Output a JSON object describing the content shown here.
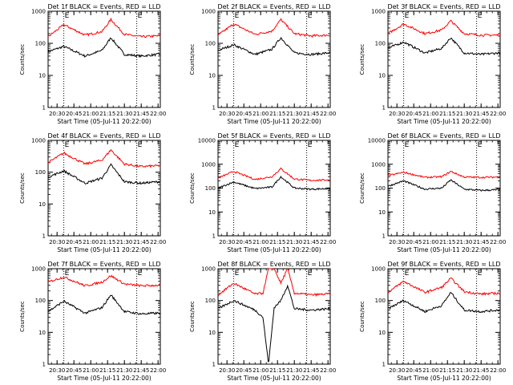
{
  "colors": {
    "events": "#000000",
    "lld": "#ff0000",
    "axes": "#000000",
    "background": "#ffffff"
  },
  "chart_data": [
    {
      "type": "line",
      "title": "Det 1f BLACK = Events, RED = LLD",
      "xlabel": "Start Time (05-Jul-11 20:22:00)",
      "ylabel": "Counts/sec",
      "xlim": [
        "20:22",
        "22:02"
      ],
      "ylim": [
        1,
        1000
      ],
      "yscale": "log",
      "xticks": [
        "20:30",
        "20:45",
        "21:00",
        "21:15",
        "21:30",
        "21:45",
        "22:00"
      ],
      "yticks": [
        "1",
        "10",
        "100",
        "1000"
      ],
      "markers": [
        {
          "time": "20:36",
          "label": "E"
        },
        {
          "time": "21:41",
          "label": "E"
        }
      ],
      "x": [
        "20:22",
        "20:36",
        "20:55",
        "21:10",
        "21:18",
        "21:30",
        "21:45",
        "22:00"
      ],
      "series": [
        {
          "name": "Events",
          "color": "#000000",
          "values": [
            55,
            80,
            40,
            60,
            150,
            45,
            40,
            45
          ]
        },
        {
          "name": "LLD",
          "color": "#ff0000",
          "values": [
            160,
            380,
            180,
            230,
            550,
            190,
            160,
            170
          ]
        }
      ]
    },
    {
      "type": "line",
      "title": "Det 2f BLACK = Events, RED = LLD",
      "xlabel": "Start Time (05-Jul-11 20:22:00)",
      "ylabel": "Counts/sec",
      "xlim": [
        "20:22",
        "22:02"
      ],
      "ylim": [
        1,
        1000
      ],
      "yscale": "log",
      "xticks": [
        "20:30",
        "20:45",
        "21:00",
        "21:15",
        "21:30",
        "21:45",
        "22:00"
      ],
      "yticks": [
        "1",
        "10",
        "100",
        "1000"
      ],
      "markers": [
        {
          "time": "20:36",
          "label": "E"
        },
        {
          "time": "21:41",
          "label": "E"
        }
      ],
      "x": [
        "20:22",
        "20:36",
        "20:55",
        "21:10",
        "21:18",
        "21:30",
        "21:45",
        "22:00"
      ],
      "series": [
        {
          "name": "Events",
          "color": "#000000",
          "values": [
            60,
            90,
            45,
            65,
            150,
            50,
            45,
            50
          ]
        },
        {
          "name": "LLD",
          "color": "#ff0000",
          "values": [
            180,
            400,
            190,
            240,
            550,
            200,
            170,
            180
          ]
        }
      ]
    },
    {
      "type": "line",
      "title": "Det 3f BLACK = Events, RED = LLD",
      "xlabel": "Start Time (05-Jul-11 20:22:00)",
      "ylabel": "Counts/sec",
      "xlim": [
        "20:22",
        "22:02"
      ],
      "ylim": [
        1,
        1000
      ],
      "yscale": "log",
      "xticks": [
        "20:30",
        "20:45",
        "21:00",
        "21:15",
        "21:30",
        "21:45",
        "22:00"
      ],
      "yticks": [
        "1",
        "10",
        "100",
        "1000"
      ],
      "markers": [
        {
          "time": "20:36",
          "label": "E"
        },
        {
          "time": "21:41",
          "label": "E"
        }
      ],
      "x": [
        "20:22",
        "20:36",
        "20:55",
        "21:10",
        "21:18",
        "21:30",
        "21:45",
        "22:00"
      ],
      "series": [
        {
          "name": "Events",
          "color": "#000000",
          "values": [
            70,
            110,
            50,
            70,
            150,
            50,
            45,
            50
          ]
        },
        {
          "name": "LLD",
          "color": "#ff0000",
          "values": [
            200,
            400,
            200,
            260,
            500,
            200,
            180,
            180
          ]
        }
      ]
    },
    {
      "type": "line",
      "title": "Det 4f BLACK = Events, RED = LLD",
      "xlabel": "Start Time (05-Jul-11 20:22:00)",
      "ylabel": "Counts/sec",
      "xlim": [
        "20:22",
        "22:02"
      ],
      "ylim": [
        1,
        1000
      ],
      "yscale": "log",
      "xticks": [
        "20:30",
        "20:45",
        "21:00",
        "21:15",
        "21:30",
        "21:45",
        "22:00"
      ],
      "yticks": [
        "1",
        "10",
        "100",
        "1000"
      ],
      "markers": [
        {
          "time": "20:36",
          "label": "E"
        },
        {
          "time": "21:41",
          "label": "E"
        }
      ],
      "x": [
        "20:22",
        "20:36",
        "20:55",
        "21:10",
        "21:18",
        "21:30",
        "21:45",
        "22:00"
      ],
      "series": [
        {
          "name": "Events",
          "color": "#000000",
          "values": [
            70,
            110,
            45,
            65,
            170,
            50,
            45,
            50
          ]
        },
        {
          "name": "LLD",
          "color": "#ff0000",
          "values": [
            200,
            400,
            180,
            240,
            500,
            180,
            150,
            160
          ]
        }
      ]
    },
    {
      "type": "line",
      "title": "Det 5f BLACK = Events, RED = LLD",
      "xlabel": "Start Time (05-Jul-11 20:22:00)",
      "ylabel": "Counts/sec",
      "xlim": [
        "20:22",
        "22:02"
      ],
      "ylim": [
        1,
        10000
      ],
      "yscale": "log",
      "xticks": [
        "20:30",
        "20:45",
        "21:00",
        "21:15",
        "21:30",
        "21:45",
        "22:00"
      ],
      "yticks": [
        "1",
        "10",
        "100",
        "1000",
        "10000"
      ],
      "markers": [
        {
          "time": "20:36",
          "label": "E"
        },
        {
          "time": "21:41",
          "label": "E"
        }
      ],
      "x": [
        "20:22",
        "20:36",
        "20:55",
        "21:10",
        "21:18",
        "21:30",
        "21:45",
        "22:00"
      ],
      "series": [
        {
          "name": "Events",
          "color": "#000000",
          "values": [
            100,
            180,
            95,
            110,
            300,
            100,
            90,
            95
          ]
        },
        {
          "name": "LLD",
          "color": "#ff0000",
          "values": [
            260,
            500,
            230,
            300,
            650,
            240,
            210,
            220
          ]
        }
      ]
    },
    {
      "type": "line",
      "title": "Det 6f BLACK = Events, RED = LLD",
      "xlabel": "Start Time (05-Jul-11 20:22:00)",
      "ylabel": "Counts/sec",
      "xlim": [
        "20:22",
        "22:02"
      ],
      "ylim": [
        1,
        10000
      ],
      "yscale": "log",
      "xticks": [
        "20:30",
        "20:45",
        "21:00",
        "21:15",
        "21:30",
        "21:45",
        "22:00"
      ],
      "yticks": [
        "1",
        "10",
        "100",
        "1000",
        "10000"
      ],
      "markers": [
        {
          "time": "20:36",
          "label": "E"
        },
        {
          "time": "21:41",
          "label": "E"
        }
      ],
      "x": [
        "20:22",
        "20:36",
        "20:55",
        "21:10",
        "21:18",
        "21:30",
        "21:45",
        "22:00"
      ],
      "series": [
        {
          "name": "Events",
          "color": "#000000",
          "values": [
            120,
            200,
            90,
            100,
            220,
            90,
            80,
            85
          ]
        },
        {
          "name": "LLD",
          "color": "#ff0000",
          "values": [
            330,
            460,
            280,
            300,
            500,
            290,
            280,
            290
          ]
        }
      ]
    },
    {
      "type": "line",
      "title": "Det 7f BLACK = Events, RED = LLD",
      "xlabel": "Start Time (05-Jul-11 20:22:00)",
      "ylabel": "Counts/sec",
      "xlim": [
        "20:22",
        "22:02"
      ],
      "ylim": [
        1,
        1000
      ],
      "yscale": "log",
      "xticks": [
        "20:30",
        "20:45",
        "21:00",
        "21:15",
        "21:30",
        "21:45",
        "22:00"
      ],
      "yticks": [
        "1",
        "10",
        "100",
        "1000"
      ],
      "markers": [
        {
          "time": "20:36",
          "label": "E"
        },
        {
          "time": "21:41",
          "label": "E"
        }
      ],
      "x": [
        "20:22",
        "20:36",
        "20:55",
        "21:10",
        "21:18",
        "21:30",
        "21:45",
        "22:00"
      ],
      "series": [
        {
          "name": "Events",
          "color": "#000000",
          "values": [
            45,
            95,
            40,
            60,
            150,
            45,
            38,
            40
          ]
        },
        {
          "name": "LLD",
          "color": "#ff0000",
          "values": [
            380,
            550,
            290,
            380,
            600,
            330,
            290,
            300
          ]
        }
      ]
    },
    {
      "type": "line",
      "title": "Det 8f BLACK = Events, RED = LLD",
      "xlabel": "Start Time (05-Jul-11 20:22:00)",
      "ylabel": "Counts/sec",
      "xlim": [
        "20:22",
        "22:02"
      ],
      "ylim": [
        1,
        1000
      ],
      "yscale": "log",
      "xticks": [
        "20:30",
        "20:45",
        "21:00",
        "21:15",
        "21:30",
        "21:45",
        "22:00"
      ],
      "yticks": [
        "1",
        "10",
        "100",
        "1000"
      ],
      "markers": [
        {
          "time": "20:36",
          "label": "E"
        },
        {
          "time": "21:41",
          "label": "E"
        }
      ],
      "x": [
        "20:22",
        "20:36",
        "20:55",
        "21:02",
        "21:07",
        "21:12",
        "21:18",
        "21:24",
        "21:30",
        "21:45",
        "22:00"
      ],
      "series": [
        {
          "name": "Events",
          "color": "#000000",
          "values": [
            55,
            100,
            50,
            30,
            1,
            60,
            100,
            300,
            55,
            50,
            55
          ]
        },
        {
          "name": "LLD",
          "color": "#ff0000",
          "values": [
            150,
            350,
            160,
            170,
            1000,
            1000,
            350,
            1000,
            170,
            150,
            160
          ]
        }
      ]
    },
    {
      "type": "line",
      "title": "Det 9f BLACK = Events, RED = LLD",
      "xlabel": "Start Time (05-Jul-11 20:22:00)",
      "ylabel": "Counts/sec",
      "xlim": [
        "20:22",
        "22:02"
      ],
      "ylim": [
        1,
        1000
      ],
      "yscale": "log",
      "xticks": [
        "20:30",
        "20:45",
        "21:00",
        "21:15",
        "21:30",
        "21:45",
        "22:00"
      ],
      "yticks": [
        "1",
        "10",
        "100",
        "1000"
      ],
      "markers": [
        {
          "time": "20:36",
          "label": "E"
        },
        {
          "time": "21:41",
          "label": "E"
        }
      ],
      "x": [
        "20:22",
        "20:36",
        "20:55",
        "21:10",
        "21:18",
        "21:30",
        "21:45",
        "22:00"
      ],
      "series": [
        {
          "name": "Events",
          "color": "#000000",
          "values": [
            55,
            100,
            45,
            70,
            180,
            50,
            45,
            50
          ]
        },
        {
          "name": "LLD",
          "color": "#ff0000",
          "values": [
            180,
            400,
            180,
            260,
            500,
            190,
            160,
            170
          ]
        }
      ]
    }
  ]
}
